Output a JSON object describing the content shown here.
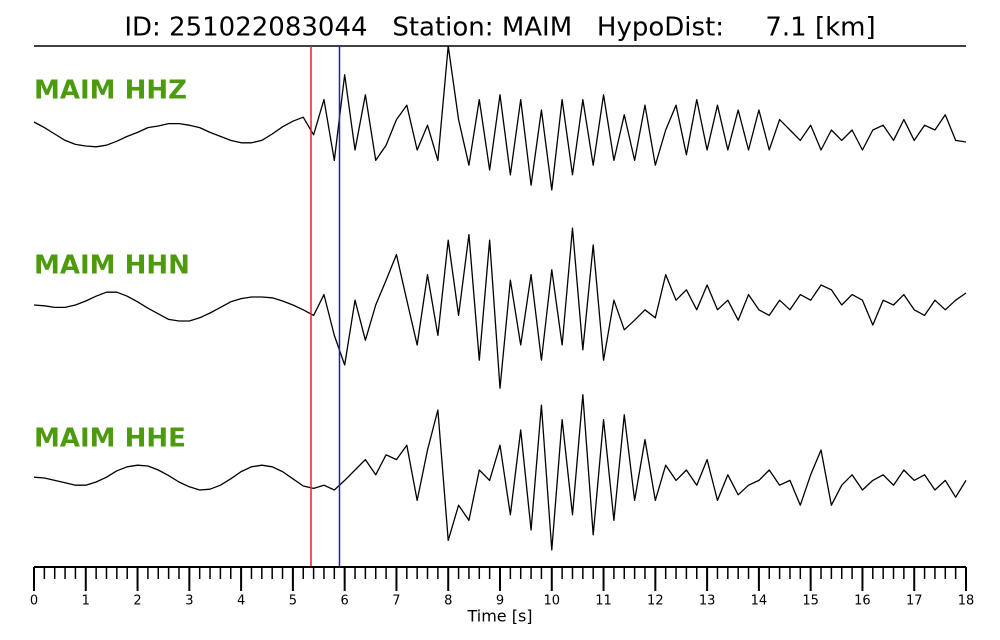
{
  "chart_data": {
    "type": "line",
    "title": "ID: 251022083044   Station: MAIM   HypoDist:     7.1 [km]",
    "xlabel": "Time [s]",
    "xlim": [
      0,
      18
    ],
    "xticks": [
      0,
      1,
      2,
      3,
      4,
      5,
      6,
      7,
      8,
      9,
      10,
      11,
      12,
      13,
      14,
      15,
      16,
      17,
      18
    ],
    "xminor_step": 0.2,
    "ylim": [
      -1,
      1
    ],
    "label_color": "#4d9a0f",
    "markers": [
      {
        "x": 5.35,
        "color": "#e8221b"
      },
      {
        "x": 5.9,
        "color": "#1a1ae6"
      }
    ],
    "x": [
      0,
      0.2,
      0.4,
      0.6,
      0.8,
      1,
      1.2,
      1.4,
      1.6,
      1.8,
      2,
      2.2,
      2.4,
      2.6,
      2.8,
      3,
      3.2,
      3.4,
      3.6,
      3.8,
      4,
      4.2,
      4.4,
      4.6,
      4.8,
      5,
      5.2,
      5.4,
      5.6,
      5.8,
      6,
      6.2,
      6.4,
      6.6,
      6.8,
      7,
      7.2,
      7.4,
      7.6,
      7.8,
      8,
      8.2,
      8.4,
      8.6,
      8.8,
      9,
      9.2,
      9.4,
      9.6,
      9.8,
      10,
      10.2,
      10.4,
      10.6,
      10.8,
      11,
      11.2,
      11.4,
      11.6,
      11.8,
      12,
      12.2,
      12.4,
      12.6,
      12.8,
      13,
      13.2,
      13.4,
      13.6,
      13.8,
      14,
      14.2,
      14.4,
      14.6,
      14.8,
      15,
      15.2,
      15.4,
      15.6,
      15.8,
      16,
      16.2,
      16.4,
      16.6,
      16.8,
      17,
      17.2,
      17.4,
      17.6,
      17.8,
      18
    ],
    "series": [
      {
        "name": "MAIM HHZ",
        "color": "#000000",
        "values": [
          0.1,
          0.03,
          -0.05,
          -0.13,
          -0.18,
          -0.2,
          -0.21,
          -0.19,
          -0.14,
          -0.08,
          -0.03,
          0.03,
          0.05,
          0.08,
          0.08,
          0.06,
          0.03,
          -0.03,
          -0.08,
          -0.13,
          -0.16,
          -0.16,
          -0.13,
          -0.05,
          0.04,
          0.11,
          0.16,
          -0.06,
          0.38,
          -0.38,
          0.69,
          -0.25,
          0.44,
          -0.38,
          -0.19,
          0.13,
          0.31,
          -0.25,
          0.06,
          -0.38,
          1.05,
          0.13,
          -0.44,
          0.38,
          -0.5,
          0.44,
          -0.56,
          0.38,
          -0.69,
          0.25,
          -0.75,
          0.38,
          -0.56,
          0.38,
          -0.44,
          0.44,
          -0.38,
          0.19,
          -0.38,
          0.31,
          -0.44,
          0,
          0.31,
          -0.31,
          0.38,
          -0.25,
          0.31,
          -0.25,
          0.25,
          -0.25,
          0.25,
          -0.25,
          0.13,
          0,
          -0.13,
          0.06,
          -0.25,
          0,
          -0.13,
          0,
          -0.25,
          0,
          0.06,
          -0.13,
          0.13,
          -0.13,
          0.06,
          0,
          0.19,
          -0.13,
          -0.15
        ]
      },
      {
        "name": "MAIM HHN",
        "color": "#000000",
        "values": [
          0,
          -0.01,
          -0.03,
          -0.03,
          0,
          0.05,
          0.11,
          0.16,
          0.16,
          0.11,
          0.04,
          -0.04,
          -0.11,
          -0.18,
          -0.2,
          -0.2,
          -0.16,
          -0.1,
          -0.03,
          0.04,
          0.08,
          0.1,
          0.1,
          0.09,
          0.05,
          0,
          -0.06,
          -0.13,
          0.13,
          -0.38,
          -0.75,
          0.06,
          -0.44,
          0,
          0.31,
          0.63,
          0.06,
          -0.5,
          0.38,
          -0.38,
          0.81,
          -0.13,
          0.88,
          -0.69,
          0.81,
          -1.04,
          0.31,
          -0.5,
          0.38,
          -0.69,
          0.44,
          -0.5,
          0.96,
          -0.56,
          0.75,
          -0.69,
          0.06,
          -0.31,
          -0.19,
          -0.06,
          -0.16,
          0.38,
          0.06,
          0.19,
          -0.06,
          0.25,
          -0.06,
          0.06,
          -0.19,
          0.13,
          -0.06,
          -0.13,
          0.06,
          -0.06,
          0.13,
          0.06,
          0.25,
          0.19,
          0,
          0.13,
          0.06,
          -0.25,
          0.06,
          0,
          0.13,
          -0.06,
          -0.13,
          0.06,
          -0.06,
          0.06,
          0.15
        ]
      },
      {
        "name": "MAIM HHE",
        "color": "#000000",
        "values": [
          0.01,
          0,
          -0.03,
          -0.06,
          -0.09,
          -0.09,
          -0.05,
          0.01,
          0.09,
          0.14,
          0.16,
          0.15,
          0.1,
          0.03,
          -0.05,
          -0.11,
          -0.15,
          -0.14,
          -0.09,
          -0.01,
          0.08,
          0.14,
          0.16,
          0.14,
          0.08,
          -0.01,
          -0.1,
          -0.13,
          -0.09,
          -0.15,
          -0.03,
          0.1,
          0.23,
          0.04,
          0.29,
          0.23,
          0.41,
          -0.28,
          0.35,
          0.85,
          -0.78,
          -0.34,
          -0.53,
          0.1,
          -0.03,
          0.41,
          -0.46,
          0.6,
          -0.65,
          0.91,
          -0.9,
          0.73,
          -0.46,
          1.04,
          -0.71,
          0.73,
          -0.53,
          0.79,
          -0.28,
          0.48,
          -0.28,
          0.16,
          -0.03,
          0.1,
          -0.09,
          0.23,
          -0.28,
          0.04,
          -0.21,
          -0.09,
          -0.03,
          0.1,
          -0.09,
          -0.03,
          -0.34,
          0.04,
          0.35,
          -0.34,
          -0.09,
          0.04,
          -0.15,
          -0.03,
          0.04,
          -0.09,
          0.1,
          -0.03,
          0.04,
          -0.15,
          -0.03,
          -0.24,
          -0.03
        ]
      }
    ]
  }
}
